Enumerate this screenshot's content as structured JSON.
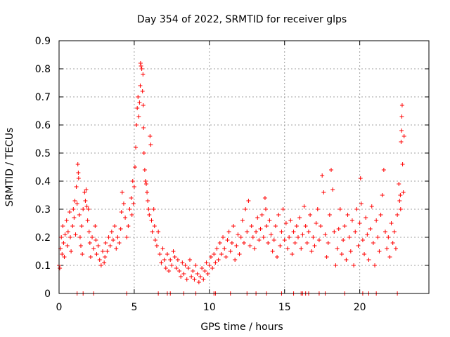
{
  "chart_data": {
    "type": "scatter",
    "title": "Day 354 of 2022, SRMTID for receiver glps",
    "xlabel": "GPS time / hours",
    "ylabel": "SRMTID / TECUs",
    "xlim": [
      0,
      24.6
    ],
    "ylim": [
      0,
      0.9
    ],
    "x_ticks": [
      0,
      5,
      10,
      15,
      20
    ],
    "x_tick_labels": [
      "0",
      "5",
      "10",
      "15",
      "20"
    ],
    "y_ticks": [
      0,
      0.1,
      0.2,
      0.3,
      0.4,
      0.5,
      0.6,
      0.7,
      0.8,
      0.9
    ],
    "y_tick_labels": [
      "0",
      "0.1",
      "0.2",
      "0.3",
      "0.4",
      "0.5",
      "0.6",
      "0.7",
      "0.8",
      "0.9"
    ],
    "grid": true,
    "marker": "+",
    "color": "#ff0000",
    "series": [
      {
        "name": "SRMTID",
        "points": [
          [
            0.0,
            0.1
          ],
          [
            0.05,
            0.09
          ],
          [
            0.1,
            0.16
          ],
          [
            0.15,
            0.2
          ],
          [
            0.2,
            0.14
          ],
          [
            0.25,
            0.24
          ],
          [
            0.3,
            0.18
          ],
          [
            0.35,
            0.13
          ],
          [
            0.4,
            0.21
          ],
          [
            0.5,
            0.26
          ],
          [
            0.55,
            0.17
          ],
          [
            0.6,
            0.22
          ],
          [
            0.7,
            0.29
          ],
          [
            0.75,
            0.2
          ],
          [
            0.8,
            0.15
          ],
          [
            0.9,
            0.24
          ],
          [
            0.95,
            0.3
          ],
          [
            1.0,
            0.27
          ],
          [
            1.05,
            0.33
          ],
          [
            1.1,
            0.21
          ],
          [
            1.15,
            0.38
          ],
          [
            1.2,
            0.32
          ],
          [
            1.25,
            0.46
          ],
          [
            1.28,
            0.43
          ],
          [
            1.3,
            0.41
          ],
          [
            1.35,
            0.28
          ],
          [
            1.4,
            0.2
          ],
          [
            1.45,
            0.17
          ],
          [
            1.5,
            0.24
          ],
          [
            1.55,
            0.14
          ],
          [
            1.6,
            0.3
          ],
          [
            1.7,
            0.36
          ],
          [
            1.75,
            0.33
          ],
          [
            1.8,
            0.37
          ],
          [
            1.85,
            0.31
          ],
          [
            1.9,
            0.26
          ],
          [
            1.95,
            0.3
          ],
          [
            2.0,
            0.22
          ],
          [
            2.05,
            0.18
          ],
          [
            2.1,
            0.13
          ],
          [
            2.2,
            0.2
          ],
          [
            2.3,
            0.16
          ],
          [
            2.4,
            0.24
          ],
          [
            2.45,
            0.19
          ],
          [
            2.5,
            0.14
          ],
          [
            2.6,
            0.17
          ],
          [
            2.7,
            0.12
          ],
          [
            2.8,
            0.1
          ],
          [
            2.9,
            0.15
          ],
          [
            3.0,
            0.11
          ],
          [
            3.05,
            0.13
          ],
          [
            3.1,
            0.18
          ],
          [
            3.2,
            0.15
          ],
          [
            3.3,
            0.2
          ],
          [
            3.4,
            0.17
          ],
          [
            3.5,
            0.22
          ],
          [
            3.6,
            0.19
          ],
          [
            3.7,
            0.24
          ],
          [
            3.8,
            0.16
          ],
          [
            3.9,
            0.2
          ],
          [
            4.0,
            0.18
          ],
          [
            4.1,
            0.23
          ],
          [
            4.15,
            0.29
          ],
          [
            4.2,
            0.36
          ],
          [
            4.3,
            0.32
          ],
          [
            4.4,
            0.27
          ],
          [
            4.5,
            0.2
          ],
          [
            4.6,
            0.24
          ],
          [
            4.7,
            0.3
          ],
          [
            4.8,
            0.34
          ],
          [
            4.85,
            0.28
          ],
          [
            4.9,
            0.4
          ],
          [
            4.95,
            0.32
          ],
          [
            5.0,
            0.38
          ],
          [
            5.05,
            0.45
          ],
          [
            5.1,
            0.52
          ],
          [
            5.15,
            0.6
          ],
          [
            5.2,
            0.66
          ],
          [
            5.25,
            0.7
          ],
          [
            5.3,
            0.63
          ],
          [
            5.35,
            0.68
          ],
          [
            5.4,
            0.74
          ],
          [
            5.42,
            0.82
          ],
          [
            5.45,
            0.81
          ],
          [
            5.5,
            0.8
          ],
          [
            5.55,
            0.72
          ],
          [
            5.58,
            0.78
          ],
          [
            5.6,
            0.67
          ],
          [
            5.62,
            0.59
          ],
          [
            5.65,
            0.5
          ],
          [
            5.7,
            0.44
          ],
          [
            5.75,
            0.4
          ],
          [
            5.8,
            0.39
          ],
          [
            5.85,
            0.36
          ],
          [
            5.9,
            0.33
          ],
          [
            5.95,
            0.3
          ],
          [
            6.0,
            0.28
          ],
          [
            6.05,
            0.56
          ],
          [
            6.1,
            0.53
          ],
          [
            6.15,
            0.26
          ],
          [
            6.2,
            0.22
          ],
          [
            6.3,
            0.3
          ],
          [
            6.35,
            0.24
          ],
          [
            6.4,
            0.19
          ],
          [
            6.5,
            0.17
          ],
          [
            6.6,
            0.22
          ],
          [
            6.7,
            0.14
          ],
          [
            6.8,
            0.11
          ],
          [
            6.9,
            0.16
          ],
          [
            7.0,
            0.12
          ],
          [
            7.1,
            0.09
          ],
          [
            7.2,
            0.14
          ],
          [
            7.3,
            0.08
          ],
          [
            7.4,
            0.12
          ],
          [
            7.5,
            0.1
          ],
          [
            7.6,
            0.15
          ],
          [
            7.7,
            0.13
          ],
          [
            7.8,
            0.09
          ],
          [
            7.9,
            0.12
          ],
          [
            8.0,
            0.08
          ],
          [
            8.1,
            0.06
          ],
          [
            8.2,
            0.11
          ],
          [
            8.3,
            0.07
          ],
          [
            8.4,
            0.1
          ],
          [
            8.5,
            0.05
          ],
          [
            8.6,
            0.09
          ],
          [
            8.7,
            0.12
          ],
          [
            8.8,
            0.06
          ],
          [
            8.9,
            0.08
          ],
          [
            9.0,
            0.05
          ],
          [
            9.1,
            0.1
          ],
          [
            9.2,
            0.07
          ],
          [
            9.3,
            0.04
          ],
          [
            9.4,
            0.06
          ],
          [
            9.5,
            0.09
          ],
          [
            9.6,
            0.05
          ],
          [
            9.7,
            0.08
          ],
          [
            9.8,
            0.11
          ],
          [
            9.9,
            0.07
          ],
          [
            10.0,
            0.1
          ],
          [
            10.1,
            0.13
          ],
          [
            10.2,
            0.09
          ],
          [
            10.3,
            0.14
          ],
          [
            10.4,
            0.11
          ],
          [
            10.5,
            0.16
          ],
          [
            10.6,
            0.12
          ],
          [
            10.7,
            0.18
          ],
          [
            10.8,
            0.14
          ],
          [
            10.9,
            0.2
          ],
          [
            11.0,
            0.16
          ],
          [
            11.1,
            0.13
          ],
          [
            11.2,
            0.19
          ],
          [
            11.3,
            0.22
          ],
          [
            11.4,
            0.15
          ],
          [
            11.5,
            0.18
          ],
          [
            11.6,
            0.24
          ],
          [
            11.7,
            0.12
          ],
          [
            11.8,
            0.17
          ],
          [
            11.9,
            0.21
          ],
          [
            12.0,
            0.14
          ],
          [
            12.1,
            0.2
          ],
          [
            12.2,
            0.26
          ],
          [
            12.3,
            0.18
          ],
          [
            12.4,
            0.3
          ],
          [
            12.5,
            0.22
          ],
          [
            12.6,
            0.33
          ],
          [
            12.7,
            0.17
          ],
          [
            12.8,
            0.24
          ],
          [
            12.9,
            0.2
          ],
          [
            13.0,
            0.16
          ],
          [
            13.1,
            0.22
          ],
          [
            13.2,
            0.27
          ],
          [
            13.3,
            0.19
          ],
          [
            13.4,
            0.23
          ],
          [
            13.5,
            0.28
          ],
          [
            13.6,
            0.2
          ],
          [
            13.7,
            0.34
          ],
          [
            13.75,
            0.3
          ],
          [
            13.8,
            0.24
          ],
          [
            13.9,
            0.18
          ],
          [
            14.0,
            0.26
          ],
          [
            14.1,
            0.21
          ],
          [
            14.2,
            0.15
          ],
          [
            14.3,
            0.19
          ],
          [
            14.4,
            0.24
          ],
          [
            14.5,
            0.13
          ],
          [
            14.6,
            0.28
          ],
          [
            14.7,
            0.17
          ],
          [
            14.8,
            0.22
          ],
          [
            14.9,
            0.3
          ],
          [
            15.0,
            0.19
          ],
          [
            15.1,
            0.25
          ],
          [
            15.2,
            0.16
          ],
          [
            15.3,
            0.2
          ],
          [
            15.4,
            0.26
          ],
          [
            15.5,
            0.14
          ],
          [
            15.6,
            0.22
          ],
          [
            15.7,
            0.18
          ],
          [
            15.8,
            0.24
          ],
          [
            15.9,
            0.2
          ],
          [
            16.0,
            0.27
          ],
          [
            16.1,
            0.16
          ],
          [
            16.2,
            0.21
          ],
          [
            16.3,
            0.31
          ],
          [
            16.4,
            0.24
          ],
          [
            16.5,
            0.18
          ],
          [
            16.6,
            0.22
          ],
          [
            16.7,
            0.28
          ],
          [
            16.8,
            0.15
          ],
          [
            16.9,
            0.2
          ],
          [
            17.0,
            0.17
          ],
          [
            17.1,
            0.25
          ],
          [
            17.2,
            0.3
          ],
          [
            17.3,
            0.19
          ],
          [
            17.4,
            0.24
          ],
          [
            17.5,
            0.42
          ],
          [
            17.6,
            0.36
          ],
          [
            17.7,
            0.21
          ],
          [
            17.8,
            0.13
          ],
          [
            17.9,
            0.18
          ],
          [
            18.0,
            0.28
          ],
          [
            18.1,
            0.44
          ],
          [
            18.2,
            0.37
          ],
          [
            18.3,
            0.22
          ],
          [
            18.4,
            0.1
          ],
          [
            18.5,
            0.16
          ],
          [
            18.6,
            0.23
          ],
          [
            18.7,
            0.3
          ],
          [
            18.8,
            0.14
          ],
          [
            18.9,
            0.19
          ],
          [
            19.0,
            0.24
          ],
          [
            19.1,
            0.12
          ],
          [
            19.2,
            0.28
          ],
          [
            19.3,
            0.2
          ],
          [
            19.4,
            0.15
          ],
          [
            19.5,
            0.26
          ],
          [
            19.6,
            0.1
          ],
          [
            19.7,
            0.22
          ],
          [
            19.8,
            0.3
          ],
          [
            19.9,
            0.17
          ],
          [
            20.0,
            0.25
          ],
          [
            20.05,
            0.41
          ],
          [
            20.1,
            0.32
          ],
          [
            20.2,
            0.19
          ],
          [
            20.3,
            0.14
          ],
          [
            20.4,
            0.27
          ],
          [
            20.5,
            0.21
          ],
          [
            20.6,
            0.12
          ],
          [
            20.7,
            0.23
          ],
          [
            20.8,
            0.31
          ],
          [
            20.9,
            0.18
          ],
          [
            21.0,
            0.1
          ],
          [
            21.1,
            0.26
          ],
          [
            21.2,
            0.2
          ],
          [
            21.3,
            0.15
          ],
          [
            21.4,
            0.28
          ],
          [
            21.5,
            0.35
          ],
          [
            21.6,
            0.44
          ],
          [
            21.7,
            0.22
          ],
          [
            21.8,
            0.16
          ],
          [
            21.9,
            0.2
          ],
          [
            22.0,
            0.13
          ],
          [
            22.1,
            0.25
          ],
          [
            22.2,
            0.18
          ],
          [
            22.3,
            0.22
          ],
          [
            22.4,
            0.16
          ],
          [
            22.5,
            0.28
          ],
          [
            22.6,
            0.39
          ],
          [
            22.65,
            0.33
          ],
          [
            22.7,
            0.35
          ],
          [
            22.72,
            0.3
          ],
          [
            22.75,
            0.54
          ],
          [
            22.78,
            0.58
          ],
          [
            22.8,
            0.63
          ],
          [
            22.82,
            0.67
          ],
          [
            22.85,
            0.46
          ],
          [
            22.9,
            0.36
          ],
          [
            22.95,
            0.56
          ],
          [
            1.2,
            0.0
          ],
          [
            1.6,
            0.0
          ],
          [
            2.3,
            0.0
          ],
          [
            4.5,
            0.0
          ],
          [
            6.6,
            0.0
          ],
          [
            7.2,
            0.0
          ],
          [
            7.4,
            0.0
          ],
          [
            8.3,
            0.0
          ],
          [
            9.1,
            0.0
          ],
          [
            10.3,
            0.0
          ],
          [
            10.4,
            0.0
          ],
          [
            11.4,
            0.0
          ],
          [
            12.5,
            0.0
          ],
          [
            13.1,
            0.0
          ],
          [
            13.8,
            0.0
          ],
          [
            14.8,
            0.0
          ],
          [
            15.6,
            0.0
          ],
          [
            16.1,
            0.0
          ],
          [
            16.2,
            0.0
          ],
          [
            16.4,
            0.0
          ],
          [
            16.6,
            0.0
          ],
          [
            17.3,
            0.0
          ],
          [
            17.7,
            0.0
          ],
          [
            19.0,
            0.0
          ],
          [
            20.2,
            0.0
          ],
          [
            20.6,
            0.0
          ],
          [
            21.1,
            0.0
          ],
          [
            22.5,
            0.0
          ]
        ]
      }
    ]
  }
}
